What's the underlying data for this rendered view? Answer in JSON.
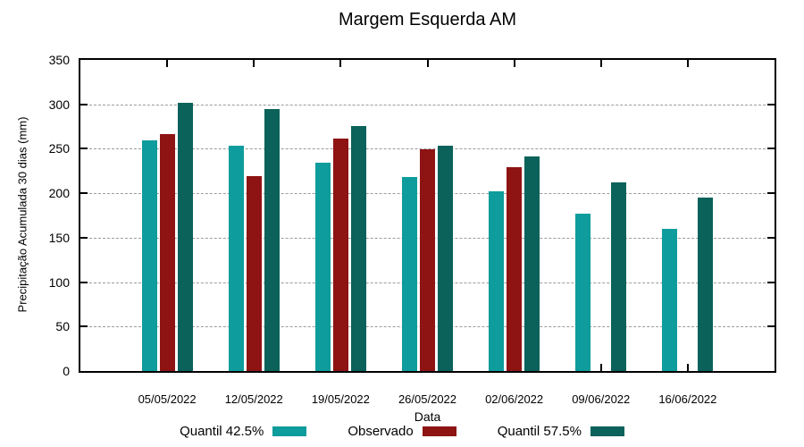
{
  "chart_data": {
    "type": "bar",
    "title": "Margem Esquerda AM",
    "xlabel": "Data",
    "ylabel": "Precipitação Acumulada 30 dias (mm)",
    "ylim": [
      0,
      350
    ],
    "yticks": [
      0,
      50,
      100,
      150,
      200,
      250,
      300,
      350
    ],
    "grid": true,
    "grid_style": "dashed",
    "legend_position": "bottom-center",
    "categories": [
      "05/05/2022",
      "12/05/2022",
      "19/05/2022",
      "26/05/2022",
      "02/06/2022",
      "09/06/2022",
      "16/06/2022"
    ],
    "series": [
      {
        "name": "Quantil 42.5%",
        "color": "#0E9C9C",
        "values": [
          260,
          253,
          234,
          218,
          202,
          177,
          160
        ]
      },
      {
        "name": "Observado",
        "color": "#8E1313",
        "values": [
          267,
          219,
          262,
          249,
          229,
          null,
          null
        ]
      },
      {
        "name": "Quantil 57.5%",
        "color": "#0A625A",
        "values": [
          302,
          295,
          276,
          253,
          241,
          212,
          195
        ]
      }
    ]
  }
}
